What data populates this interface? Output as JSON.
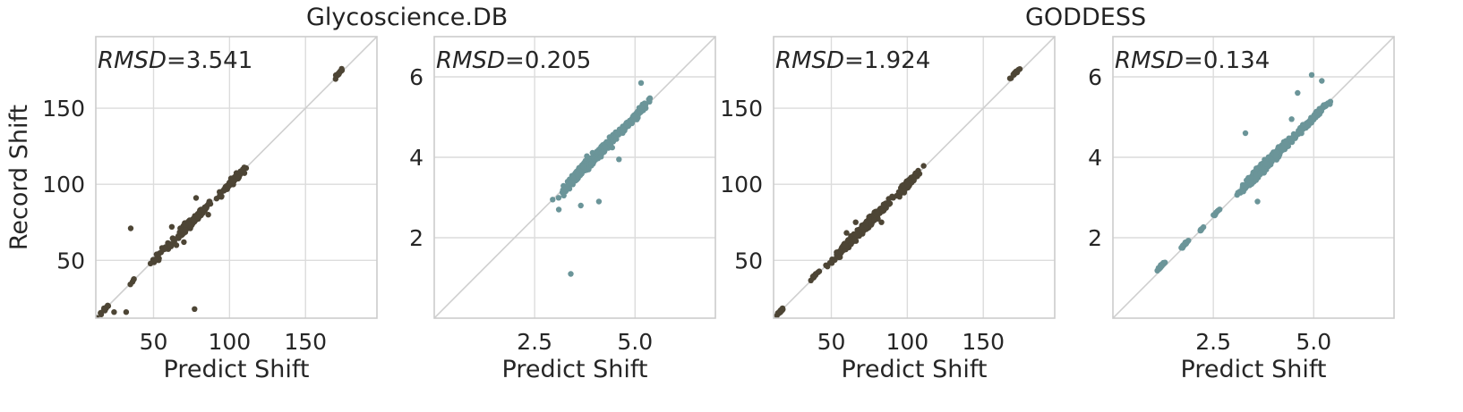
{
  "figure": {
    "group_titles": [
      "Glycoscience.DB",
      "GODDESS"
    ]
  },
  "chart_data": [
    {
      "type": "scatter",
      "group": "Glycoscience.DB",
      "xlabel": "Predict Shift",
      "ylabel": "Record Shift",
      "annotation": {
        "label": "RMSD",
        "value": "=3.541"
      },
      "xlim": [
        12,
        197
      ],
      "ylim": [
        12,
        197
      ],
      "xticks": [
        50,
        100,
        150
      ],
      "xtick_labels": [
        "50",
        "100",
        "150"
      ],
      "yticks": [
        50,
        100,
        150
      ],
      "ytick_labels": [
        "50",
        "100",
        "150"
      ],
      "grid": true,
      "color": "#4d4535",
      "clusters": [
        {
          "cx": 18,
          "cy": 18,
          "spread": 2.5,
          "n": 12
        },
        {
          "cx": 35,
          "cy": 35,
          "spread": 1.5,
          "n": 4
        },
        {
          "cx": 56,
          "cy": 56,
          "spread": 4,
          "n": 25
        },
        {
          "cx": 72,
          "cy": 72,
          "spread": 5,
          "n": 70
        },
        {
          "cx": 80,
          "cy": 80,
          "spread": 4,
          "n": 60
        },
        {
          "cx": 100,
          "cy": 100,
          "spread": 4,
          "n": 60
        },
        {
          "cx": 104,
          "cy": 104,
          "spread": 2.5,
          "n": 30
        },
        {
          "cx": 172,
          "cy": 173,
          "spread": 1.5,
          "n": 18
        }
      ],
      "outliers": [
        [
          18,
          17
        ],
        [
          24,
          16
        ],
        [
          32,
          16
        ],
        [
          35,
          71
        ],
        [
          77,
          18
        ],
        [
          78,
          91
        ],
        [
          70,
          62
        ],
        [
          65,
          60
        ],
        [
          86,
          80
        ],
        [
          62,
          72
        ]
      ]
    },
    {
      "type": "scatter",
      "group": "Glycoscience.DB",
      "xlabel": "Predict Shift",
      "ylabel": "",
      "annotation": {
        "label": "RMSD",
        "value": "=0.205"
      },
      "xlim": [
        0.0,
        7.0
      ],
      "ylim": [
        0.0,
        7.0
      ],
      "xticks": [
        2.5,
        5.0
      ],
      "xtick_labels": [
        "2.5",
        "5.0"
      ],
      "yticks": [
        2,
        4,
        6
      ],
      "ytick_labels": [
        "2",
        "4",
        "6"
      ],
      "grid": true,
      "color": "#6b9599",
      "clusters": [
        {
          "cx": 3.5,
          "cy": 3.5,
          "spread": 0.18,
          "n": 60
        },
        {
          "cx": 3.8,
          "cy": 3.8,
          "spread": 0.22,
          "n": 120
        },
        {
          "cx": 4.2,
          "cy": 4.2,
          "spread": 0.18,
          "n": 60
        },
        {
          "cx": 4.6,
          "cy": 4.6,
          "spread": 0.15,
          "n": 40
        },
        {
          "cx": 5.0,
          "cy": 5.0,
          "spread": 0.15,
          "n": 50
        },
        {
          "cx": 5.2,
          "cy": 5.3,
          "spread": 0.1,
          "n": 15
        }
      ],
      "outliers": [
        [
          3.4,
          1.1
        ],
        [
          2.95,
          2.95
        ],
        [
          3.1,
          2.7
        ],
        [
          4.1,
          2.9
        ],
        [
          5.15,
          5.85
        ],
        [
          3.65,
          2.8
        ],
        [
          4.6,
          3.95
        ]
      ]
    },
    {
      "type": "scatter",
      "group": "GODDESS",
      "xlabel": "Predict Shift",
      "ylabel": "",
      "annotation": {
        "label": "RMSD",
        "value": "=1.924"
      },
      "xlim": [
        12,
        197
      ],
      "ylim": [
        12,
        197
      ],
      "xticks": [
        50,
        100,
        150
      ],
      "xtick_labels": [
        "50",
        "100",
        "150"
      ],
      "yticks": [
        50,
        100,
        150
      ],
      "ytick_labels": [
        "50",
        "100",
        "150"
      ],
      "grid": true,
      "color": "#4d4535",
      "clusters": [
        {
          "cx": 17,
          "cy": 17,
          "spread": 1.5,
          "n": 15
        },
        {
          "cx": 39,
          "cy": 40,
          "spread": 1.5,
          "n": 15
        },
        {
          "cx": 58,
          "cy": 58,
          "spread": 4,
          "n": 60
        },
        {
          "cx": 70,
          "cy": 70,
          "spread": 5,
          "n": 140
        },
        {
          "cx": 80,
          "cy": 80,
          "spread": 4,
          "n": 90
        },
        {
          "cx": 101,
          "cy": 101,
          "spread": 3.5,
          "n": 120
        },
        {
          "cx": 172,
          "cy": 174,
          "spread": 1.2,
          "n": 20
        }
      ],
      "outliers": [
        [
          60,
          68
        ],
        [
          83,
          75
        ],
        [
          55,
          52
        ],
        [
          90,
          92
        ],
        [
          66,
          75
        ]
      ]
    },
    {
      "type": "scatter",
      "group": "GODDESS",
      "xlabel": "Predict Shift",
      "ylabel": "",
      "annotation": {
        "label": "RMSD",
        "value": "=0.134"
      },
      "xlim": [
        0.0,
        7.0
      ],
      "ylim": [
        0.0,
        7.0
      ],
      "xticks": [
        2.5,
        5.0
      ],
      "xtick_labels": [
        "2.5",
        "5.0"
      ],
      "yticks": [
        2,
        4,
        6
      ],
      "ytick_labels": [
        "2",
        "4",
        "6"
      ],
      "grid": true,
      "color": "#6b9599",
      "clusters": [
        {
          "cx": 1.2,
          "cy": 1.3,
          "spread": 0.04,
          "n": 40
        },
        {
          "cx": 1.8,
          "cy": 1.85,
          "spread": 0.04,
          "n": 25
        },
        {
          "cx": 2.2,
          "cy": 2.2,
          "spread": 0.03,
          "n": 10
        },
        {
          "cx": 2.55,
          "cy": 2.6,
          "spread": 0.04,
          "n": 10
        },
        {
          "cx": 3.5,
          "cy": 3.5,
          "spread": 0.15,
          "n": 200
        },
        {
          "cx": 3.8,
          "cy": 3.8,
          "spread": 0.2,
          "n": 220
        },
        {
          "cx": 4.2,
          "cy": 4.2,
          "spread": 0.15,
          "n": 110
        },
        {
          "cx": 4.7,
          "cy": 4.7,
          "spread": 0.12,
          "n": 70
        },
        {
          "cx": 5.1,
          "cy": 5.1,
          "spread": 0.12,
          "n": 90
        }
      ],
      "outliers": [
        [
          4.95,
          6.05
        ],
        [
          4.45,
          4.95
        ],
        [
          3.6,
          2.9
        ],
        [
          4.6,
          5.6
        ],
        [
          3.3,
          4.6
        ],
        [
          5.2,
          5.9
        ]
      ]
    }
  ]
}
